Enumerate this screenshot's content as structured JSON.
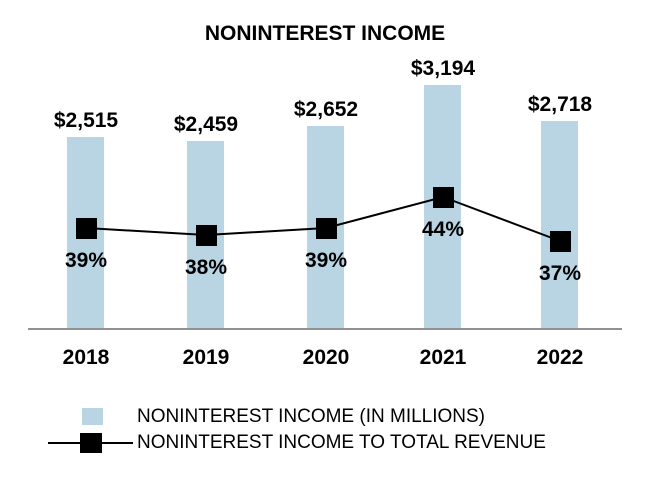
{
  "chart_data": {
    "type": "combo",
    "title": "NONINTEREST INCOME",
    "categories": [
      "2018",
      "2019",
      "2020",
      "2021",
      "2022"
    ],
    "series": [
      {
        "name": "NONINTEREST INCOME (IN MILLIONS)",
        "type": "bar",
        "values": [
          2515,
          2459,
          2652,
          3194,
          2718
        ],
        "labels": [
          "$2,515",
          "$2,459",
          "$2,652",
          "$3,194",
          "$2,718"
        ],
        "color": "#B9D4E2"
      },
      {
        "name": "NONINTEREST INCOME TO TOTAL REVENUE",
        "type": "line",
        "values": [
          39,
          38,
          39,
          44,
          37
        ],
        "labels": [
          "39%",
          "38%",
          "39%",
          "44%",
          "37%"
        ],
        "color": "#000000",
        "marker": "square"
      }
    ],
    "legend_position": "bottom",
    "grid": false,
    "axis_line_color": "#919191",
    "text_color": "#000000",
    "background": "#FFFFFF"
  }
}
